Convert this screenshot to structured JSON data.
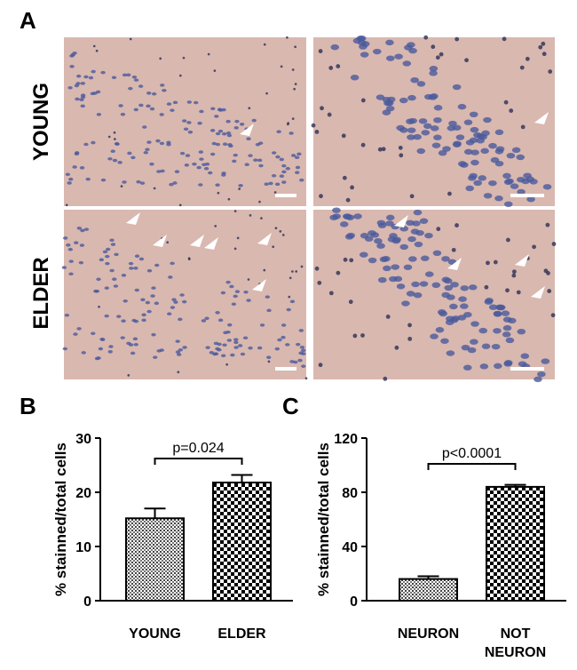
{
  "figure": {
    "panel_labels": [
      "A",
      "B",
      "C"
    ],
    "row_labels": [
      "YOUNG",
      "ELDER"
    ]
  },
  "chart_data": [
    {
      "type": "bar",
      "ylabel": "% stainned/total cells",
      "categories": [
        "YOUNG",
        "ELDER"
      ],
      "values": [
        15.2,
        21.8
      ],
      "errors": [
        1.8,
        1.4
      ],
      "patterns": [
        "fine",
        "checker"
      ],
      "ylim": [
        0,
        30
      ],
      "yticks": [
        0,
        10,
        20,
        30
      ],
      "annotation": "p=0.024"
    },
    {
      "type": "bar",
      "ylabel": "% stainned/total cells",
      "categories": [
        "NEURON",
        "NOT NEURON"
      ],
      "values": [
        16,
        84
      ],
      "errors": [
        2,
        1.5
      ],
      "patterns": [
        "fine",
        "checker"
      ],
      "ylim": [
        0,
        120
      ],
      "yticks": [
        0,
        40,
        80,
        120
      ],
      "annotation": "p<0.0001"
    }
  ]
}
